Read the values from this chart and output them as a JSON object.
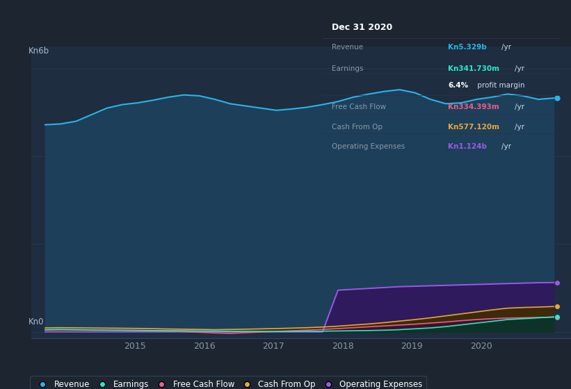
{
  "background_color": "#1c2530",
  "plot_bg_color": "#1e2d40",
  "ylabel_top": "Kn6b",
  "ylabel_bottom": "Kn0",
  "x_ticks": [
    2014.0,
    2015.0,
    2016.0,
    2017.0,
    2018.0,
    2019.0,
    2020.0
  ],
  "x_tick_labels": [
    "",
    "2015",
    "2016",
    "2017",
    "2018",
    "2019",
    "2020"
  ],
  "xlim": [
    2013.5,
    2021.3
  ],
  "ylim": [
    -150000000.0,
    6500000000.0
  ],
  "revenue_color": "#29b5e8",
  "revenue_fill": "#1e3f5a",
  "earnings_color": "#2ee8c8",
  "earnings_fill": "#0d3328",
  "fcf_color": "#e8608a",
  "fcf_fill": "#3d1228",
  "cashfromop_color": "#e8a838",
  "cashfromop_fill": "#3d2a0a",
  "opex_color": "#9b59e8",
  "opex_fill": "#2e1a5c",
  "legend": [
    {
      "label": "Revenue",
      "color": "#29b5e8"
    },
    {
      "label": "Earnings",
      "color": "#2ee8c8"
    },
    {
      "label": "Free Cash Flow",
      "color": "#e8608a"
    },
    {
      "label": "Cash From Op",
      "color": "#e8a838"
    },
    {
      "label": "Operating Expenses",
      "color": "#9b59e8"
    }
  ],
  "info_box": {
    "date": "Dec 31 2020",
    "rows": [
      {
        "label": "Revenue",
        "value": "Kn5.329b",
        "unit": "/yr",
        "value_color": "#29b5e8"
      },
      {
        "label": "Earnings",
        "value": "Kn341.730m",
        "unit": "/yr",
        "value_color": "#2ee8c8"
      },
      {
        "label": "",
        "value": "6.4%",
        "unit": " profit margin",
        "value_color": "#ffffff"
      },
      {
        "label": "Free Cash Flow",
        "value": "Kn334.393m",
        "unit": "/yr",
        "value_color": "#e8608a"
      },
      {
        "label": "Cash From Op",
        "value": "Kn577.120m",
        "unit": "/yr",
        "value_color": "#e8a838"
      },
      {
        "label": "Operating Expenses",
        "value": "Kn1.124b",
        "unit": "/yr",
        "value_color": "#9b59e8"
      }
    ]
  },
  "revenue": [
    4720000000.0,
    4740000000.0,
    4800000000.0,
    4950000000.0,
    5100000000.0,
    5180000000.0,
    5220000000.0,
    5280000000.0,
    5350000000.0,
    5400000000.0,
    5380000000.0,
    5300000000.0,
    5200000000.0,
    5150000000.0,
    5100000000.0,
    5050000000.0,
    5080000000.0,
    5120000000.0,
    5180000000.0,
    5250000000.0,
    5350000000.0,
    5420000000.0,
    5480000000.0,
    5520000000.0,
    5450000000.0,
    5300000000.0,
    5200000000.0,
    5220000000.0,
    5300000000.0,
    5350000000.0,
    5420000000.0,
    5380000000.0,
    5300000000.0,
    5329000000.0
  ],
  "earnings": [
    50000000.0,
    55000000.0,
    50000000.0,
    45000000.0,
    40000000.0,
    38000000.0,
    35000000.0,
    30000000.0,
    28000000.0,
    25000000.0,
    20000000.0,
    18000000.0,
    15000000.0,
    12000000.0,
    10000000.0,
    8000000.0,
    10000000.0,
    12000000.0,
    15000000.0,
    20000000.0,
    25000000.0,
    30000000.0,
    38000000.0,
    50000000.0,
    70000000.0,
    90000000.0,
    120000000.0,
    160000000.0,
    200000000.0,
    240000000.0,
    280000000.0,
    300000000.0,
    320000000.0,
    342000000.0
  ],
  "fcf": [
    40000000.0,
    45000000.0,
    42000000.0,
    38000000.0,
    35000000.0,
    32000000.0,
    28000000.0,
    22000000.0,
    15000000.0,
    5000000.0,
    -10000000.0,
    -25000000.0,
    -35000000.0,
    -20000000.0,
    -5000000.0,
    10000000.0,
    25000000.0,
    40000000.0,
    55000000.0,
    75000000.0,
    95000000.0,
    115000000.0,
    135000000.0,
    155000000.0,
    175000000.0,
    200000000.0,
    225000000.0,
    255000000.0,
    280000000.0,
    300000000.0,
    315000000.0,
    320000000.0,
    328000000.0,
    334000000.0
  ],
  "cashfromop": [
    90000000.0,
    95000000.0,
    92000000.0,
    88000000.0,
    85000000.0,
    82000000.0,
    78000000.0,
    72000000.0,
    65000000.0,
    60000000.0,
    55000000.0,
    50000000.0,
    55000000.0,
    60000000.0,
    68000000.0,
    75000000.0,
    85000000.0,
    95000000.0,
    110000000.0,
    130000000.0,
    155000000.0,
    180000000.0,
    210000000.0,
    245000000.0,
    280000000.0,
    320000000.0,
    365000000.0,
    410000000.0,
    455000000.0,
    500000000.0,
    540000000.0,
    555000000.0,
    565000000.0,
    577000000.0
  ],
  "opex": [
    0.0,
    0.0,
    0.0,
    0.0,
    0.0,
    0.0,
    0.0,
    0.0,
    0.0,
    0.0,
    0.0,
    0.0,
    0.0,
    0.0,
    0.0,
    0.0,
    0.0,
    0.0,
    0.0,
    950000000.0,
    970000000.0,
    990000000.0,
    1010000000.0,
    1030000000.0,
    1040000000.0,
    1050000000.0,
    1060000000.0,
    1070000000.0,
    1080000000.0,
    1090000000.0,
    1100000000.0,
    1110000000.0,
    1120000000.0,
    1124000000.0
  ],
  "n_points": 34,
  "x_start": 2013.7,
  "x_end": 2021.05
}
